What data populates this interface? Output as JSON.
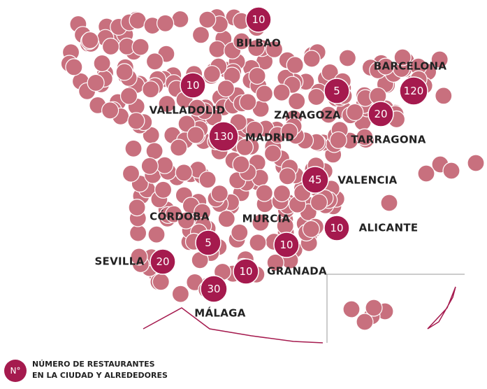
{
  "cities": [
    {
      "name": "BILBAO",
      "count": 10
    },
    {
      "name": "VALLADOLID",
      "count": 10
    },
    {
      "name": "MADRID",
      "count": 130
    },
    {
      "name": "ZARAGOZA",
      "count": 5
    },
    {
      "name": "BARCELONA",
      "count": 120
    },
    {
      "name": "TARRAGONA",
      "count": 20
    },
    {
      "name": "VALENCIA",
      "count": 45
    },
    {
      "name": "ALICANTE",
      "count": 10
    },
    {
      "name": "MURCIA",
      "count": 10
    },
    {
      "name": "CÓRDOBA",
      "count": 5
    },
    {
      "name": "SEVILLA",
      "count": 20
    },
    {
      "name": "GRANADA",
      "count": 10
    },
    {
      "name": "MÁLAGA",
      "count": 30
    }
  ],
  "legend": {
    "symbol": "N°",
    "lines": [
      "NÚMERO DE RESTAURANTES",
      "EN LA CIUDAD Y ALREDEDORES"
    ]
  }
}
